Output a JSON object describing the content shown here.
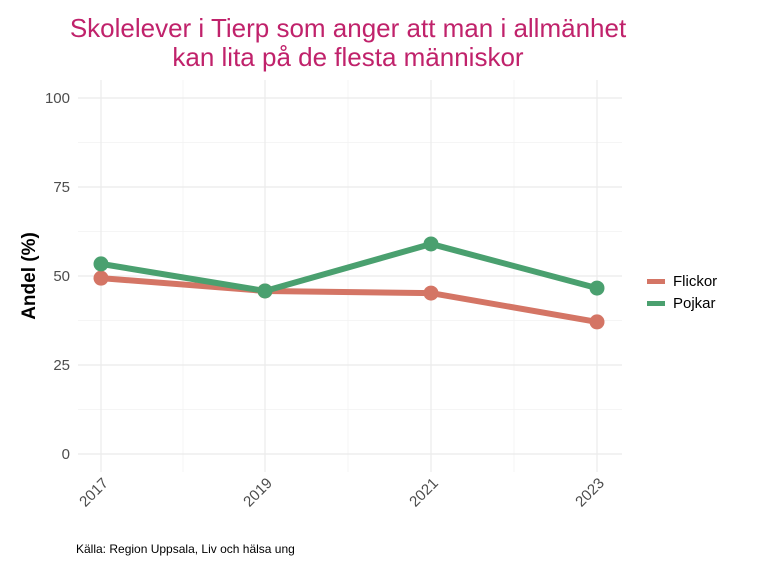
{
  "chart_data": {
    "type": "line",
    "title": "Skolelever i Tierp som anger att man i allmänhet kan lita på de flesta människor",
    "title_lines": [
      "Skolelever i Tierp som anger att man i allmänhet",
      "kan lita på de flesta människor"
    ],
    "xlabel": "",
    "ylabel": "Andel (%)",
    "categories": [
      "2017",
      "2019",
      "2021",
      "2023"
    ],
    "ylim": [
      0,
      100
    ],
    "yticks": [
      0,
      25,
      50,
      75,
      100
    ],
    "grid": true,
    "legend_position": "right",
    "series": [
      {
        "name": "Flickor",
        "color": "#d47565",
        "values": [
          49.4,
          45.8,
          45.2,
          37.1
        ]
      },
      {
        "name": "Pojkar",
        "color": "#4aa06f",
        "values": [
          53.4,
          45.8,
          59.0,
          46.6
        ]
      }
    ],
    "caption": "Källa: Region Uppsala, Liv och hälsa ung"
  }
}
